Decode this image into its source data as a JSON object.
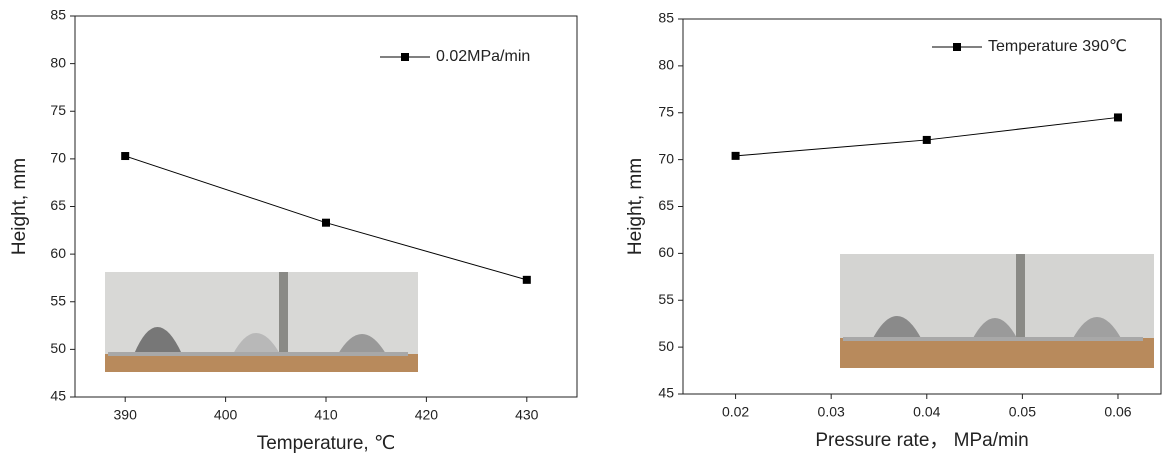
{
  "chart_data": [
    {
      "type": "line",
      "x_label": "Temperature, ℃",
      "y_label": "Height, mm",
      "x": [
        390,
        410,
        430
      ],
      "series": [
        {
          "name": "0.02MPa/min",
          "color": "#000000",
          "values": [
            70.3,
            63.3,
            57.3
          ]
        }
      ],
      "xlim": [
        385,
        435
      ],
      "xticks": [
        390,
        400,
        410,
        420,
        430
      ],
      "ylim": [
        45,
        85
      ],
      "yticks": [
        45,
        50,
        55,
        60,
        65,
        70,
        75,
        80,
        85
      ]
    },
    {
      "type": "line",
      "x_label": "Pressure rate， MPa/min",
      "y_label": "Height, mm",
      "x": [
        0.02,
        0.04,
        0.06
      ],
      "series": [
        {
          "name": "Temperature 390℃",
          "color": "#000000",
          "values": [
            70.4,
            72.1,
            74.5
          ]
        }
      ],
      "xlim": [
        0.0145,
        0.0645
      ],
      "xticks": [
        0.02,
        0.03,
        0.04,
        0.05,
        0.06
      ],
      "ylim": [
        45,
        85
      ],
      "yticks": [
        45,
        50,
        55,
        60,
        65,
        70,
        75,
        80,
        85
      ]
    }
  ]
}
